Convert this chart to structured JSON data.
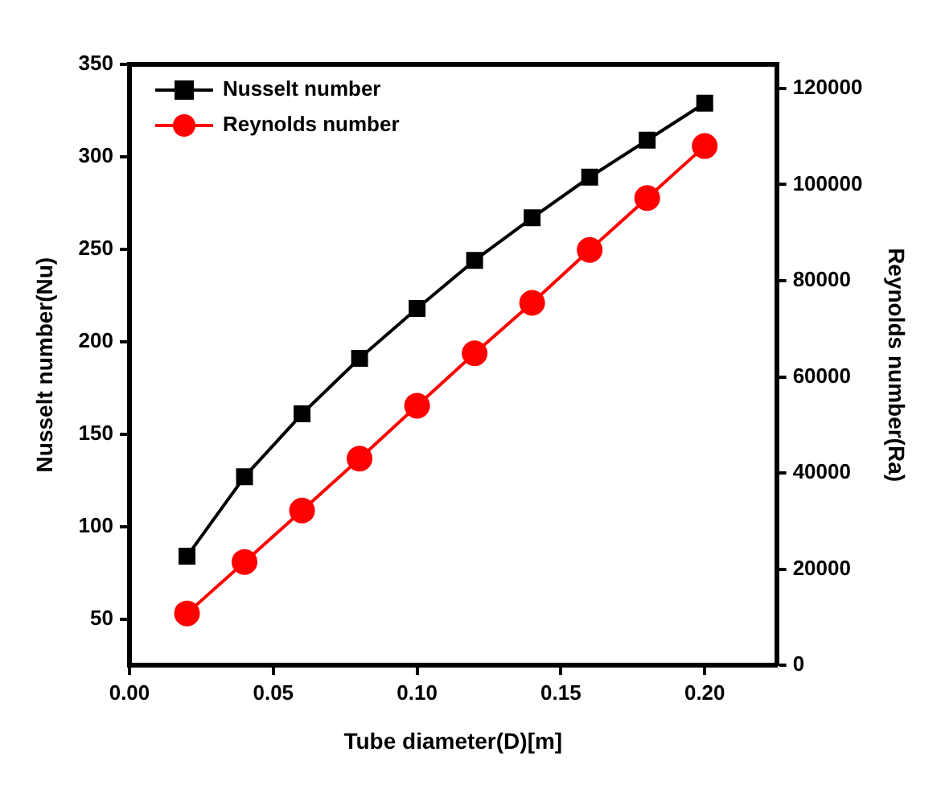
{
  "chart_data": {
    "type": "line",
    "xlabel": "Tube diameter(D)[m]",
    "ylabel": "Nusselt number(Nu)",
    "y2label": "Reynolds number(Ra)",
    "x": [
      0.02,
      0.04,
      0.06,
      0.08,
      0.1,
      0.12,
      0.14,
      0.16,
      0.18,
      0.2
    ],
    "series": [
      {
        "name": "Nusselt number",
        "color": "#000000",
        "marker": "square",
        "values": [
          84,
          127,
          161,
          191,
          218,
          244,
          267,
          289,
          309,
          329
        ]
      },
      {
        "name": "Reynolds number",
        "color": "#ff0000",
        "marker": "circle",
        "axis": "y2",
        "values": [
          10800,
          21500,
          32200,
          43000,
          54000,
          64900,
          75400,
          86400,
          97200,
          108000
        ]
      }
    ],
    "xlim": [
      0,
      0.225
    ],
    "xticks": [
      {
        "value": 0,
        "label": "0.00"
      },
      {
        "value": 0.05,
        "label": "0.05"
      },
      {
        "value": 0.1,
        "label": "0.10"
      },
      {
        "value": 0.15,
        "label": "0.15"
      },
      {
        "value": 0.2,
        "label": "0.20"
      }
    ],
    "ylim": [
      25,
      350
    ],
    "yticks": [
      50,
      100,
      150,
      200,
      250,
      300,
      350
    ],
    "y2lim": [
      0,
      125000
    ],
    "y2ticks": [
      0,
      20000,
      40000,
      60000,
      80000,
      100000,
      120000
    ],
    "grid": false,
    "legend": "top left",
    "line_style": "solid"
  }
}
